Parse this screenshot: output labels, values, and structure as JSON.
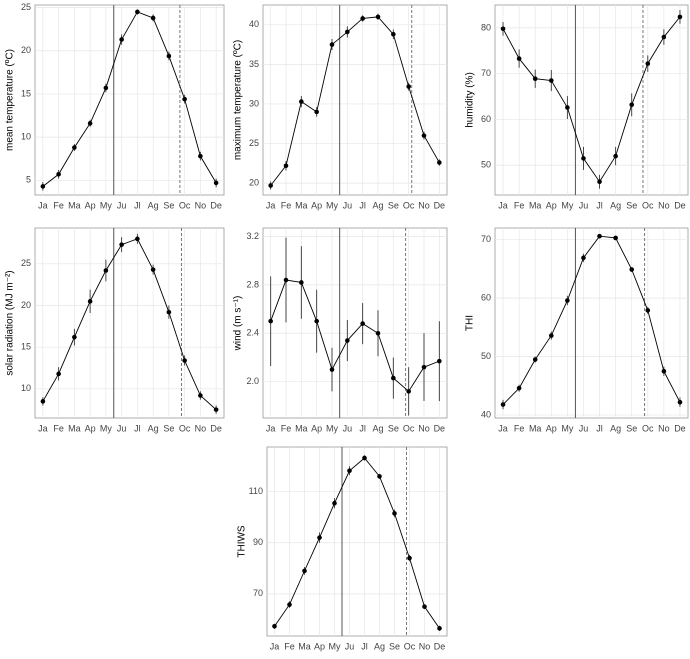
{
  "chart_data": [
    {
      "type": "line",
      "ylabel": "mean temperature (ºC)",
      "categories": [
        "Ja",
        "Fe",
        "Ma",
        "Ap",
        "My",
        "Ju",
        "Jl",
        "Ag",
        "Se",
        "Oc",
        "No",
        "De"
      ],
      "values": [
        4.3,
        5.7,
        8.8,
        11.6,
        15.7,
        21.3,
        24.5,
        23.8,
        19.4,
        14.4,
        7.8,
        4.7
      ],
      "errors": [
        0.5,
        0.5,
        0.4,
        0.4,
        0.5,
        0.6,
        0.3,
        0.4,
        0.5,
        0.5,
        0.5,
        0.5
      ],
      "ylim": [
        3.3,
        25.3
      ],
      "yticks": [
        5,
        10,
        15,
        20,
        25
      ],
      "vlines": [
        {
          "x": 5.5,
          "dashed": false
        },
        {
          "x": 9.7,
          "dashed": true
        }
      ],
      "grid": true,
      "color": "#000000"
    },
    {
      "type": "line",
      "ylabel": "maximum temperature (ºC)",
      "categories": [
        "Ja",
        "Fe",
        "Ma",
        "Ap",
        "My",
        "Ju",
        "Jl",
        "Ag",
        "Se",
        "Oc",
        "No",
        "De"
      ],
      "values": [
        19.7,
        22.2,
        30.3,
        29.0,
        37.5,
        39.1,
        40.8,
        41.0,
        38.8,
        32.2,
        26.0,
        22.6
      ],
      "errors": [
        0.5,
        0.6,
        0.7,
        0.6,
        0.7,
        0.7,
        0.4,
        0.4,
        0.6,
        0.5,
        0.5,
        0.4
      ],
      "ylim": [
        18.5,
        42.5
      ],
      "yticks": [
        20,
        25,
        30,
        35,
        40
      ],
      "vlines": [
        {
          "x": 5.5,
          "dashed": false
        },
        {
          "x": 10.2,
          "dashed": true
        }
      ],
      "grid": true,
      "color": "#000000"
    },
    {
      "type": "line",
      "ylabel": "humidity (%)",
      "categories": [
        "Ja",
        "Fe",
        "Ma",
        "Ap",
        "My",
        "Ju",
        "Jl",
        "Ag",
        "Se",
        "Oc",
        "No",
        "De"
      ],
      "values": [
        79.8,
        73.3,
        68.9,
        68.5,
        62.6,
        51.5,
        46.4,
        52.0,
        63.2,
        72.2,
        78.0,
        82.4
      ],
      "errors": [
        1.5,
        2.0,
        2.0,
        2.3,
        2.5,
        2.5,
        1.5,
        2.0,
        2.5,
        1.8,
        1.7,
        1.5
      ],
      "ylim": [
        43.5,
        85
      ],
      "yticks": [
        50,
        60,
        70,
        80
      ],
      "vlines": [
        {
          "x": 5.5,
          "dashed": false
        },
        {
          "x": 9.7,
          "dashed": true
        }
      ],
      "grid": true,
      "color": "#000000"
    },
    {
      "type": "line",
      "ylabel": "solar radiation (MJ m⁻²)",
      "categories": [
        "Ja",
        "Fe",
        "Ma",
        "Ap",
        "My",
        "Ju",
        "Jl",
        "Ag",
        "Se",
        "Oc",
        "No",
        "De"
      ],
      "values": [
        8.5,
        11.8,
        16.2,
        20.5,
        24.2,
        27.3,
        28.0,
        24.3,
        19.2,
        13.4,
        9.2,
        7.5
      ],
      "errors": [
        0.5,
        0.8,
        1.0,
        1.4,
        1.3,
        0.9,
        0.6,
        0.6,
        0.8,
        0.6,
        0.5,
        0.5
      ],
      "ylim": [
        6.5,
        29.3
      ],
      "yticks": [
        10,
        15,
        20,
        25
      ],
      "vlines": [
        {
          "x": 5.5,
          "dashed": false
        },
        {
          "x": 9.8,
          "dashed": true
        }
      ],
      "grid": true,
      "color": "#000000"
    },
    {
      "type": "line",
      "ylabel": "wind (m s⁻¹)",
      "categories": [
        "Ja",
        "Fe",
        "Ma",
        "Ap",
        "My",
        "Ju",
        "Jl",
        "Ag",
        "Se",
        "Oc",
        "No",
        "De"
      ],
      "values": [
        2.5,
        2.84,
        2.82,
        2.5,
        2.1,
        2.34,
        2.48,
        2.4,
        2.03,
        1.92,
        2.12,
        2.17
      ],
      "errors": [
        0.37,
        0.35,
        0.3,
        0.26,
        0.18,
        0.17,
        0.17,
        0.19,
        0.17,
        0.2,
        0.28,
        0.33
      ],
      "ylim": [
        1.7,
        3.27
      ],
      "yticks": [
        {
          "value": 2,
          "label": "2.0"
        },
        2.4,
        2.8,
        3.2
      ],
      "vlines": [
        {
          "x": 5.5,
          "dashed": false
        },
        {
          "x": 9.8,
          "dashed": true
        }
      ],
      "grid": true,
      "color": "#000000"
    },
    {
      "type": "line",
      "ylabel": "THI",
      "categories": [
        "Ja",
        "Fe",
        "Ma",
        "Ap",
        "My",
        "Ju",
        "Jl",
        "Ag",
        "Se",
        "Oc",
        "No",
        "De"
      ],
      "values": [
        41.8,
        44.6,
        49.5,
        53.6,
        59.6,
        66.9,
        70.6,
        70.3,
        64.9,
        57.9,
        47.5,
        42.2
      ],
      "errors": [
        0.8,
        0.6,
        0.5,
        0.7,
        0.8,
        0.7,
        0.3,
        0.3,
        0.4,
        0.6,
        0.8,
        0.8
      ],
      "ylim": [
        39.5,
        72
      ],
      "yticks": [
        40,
        50,
        60,
        70
      ],
      "vlines": [
        {
          "x": 5.5,
          "dashed": false
        },
        {
          "x": 9.8,
          "dashed": true
        }
      ],
      "grid": true,
      "color": "#000000"
    },
    {
      "type": "line",
      "ylabel": "THIWS",
      "categories": [
        "Ja",
        "Fe",
        "Ma",
        "Ap",
        "My",
        "Ju",
        "Jl",
        "Ag",
        "Se",
        "Oc",
        "No",
        "De"
      ],
      "values": [
        57.3,
        65.8,
        79.0,
        92.0,
        105.5,
        118.2,
        123.2,
        116.0,
        101.5,
        84.0,
        65.0,
        56.5
      ],
      "errors": [
        1.0,
        1.3,
        1.5,
        2.0,
        2.0,
        1.7,
        1.0,
        1.0,
        1.5,
        1.2,
        1.0,
        1.0
      ],
      "ylim": [
        53.5,
        127.5
      ],
      "yticks": [
        70,
        90,
        110
      ],
      "vlines": [
        {
          "x": 5.5,
          "dashed": false
        },
        {
          "x": 9.8,
          "dashed": true
        }
      ],
      "grid": true,
      "color": "#000000"
    }
  ]
}
